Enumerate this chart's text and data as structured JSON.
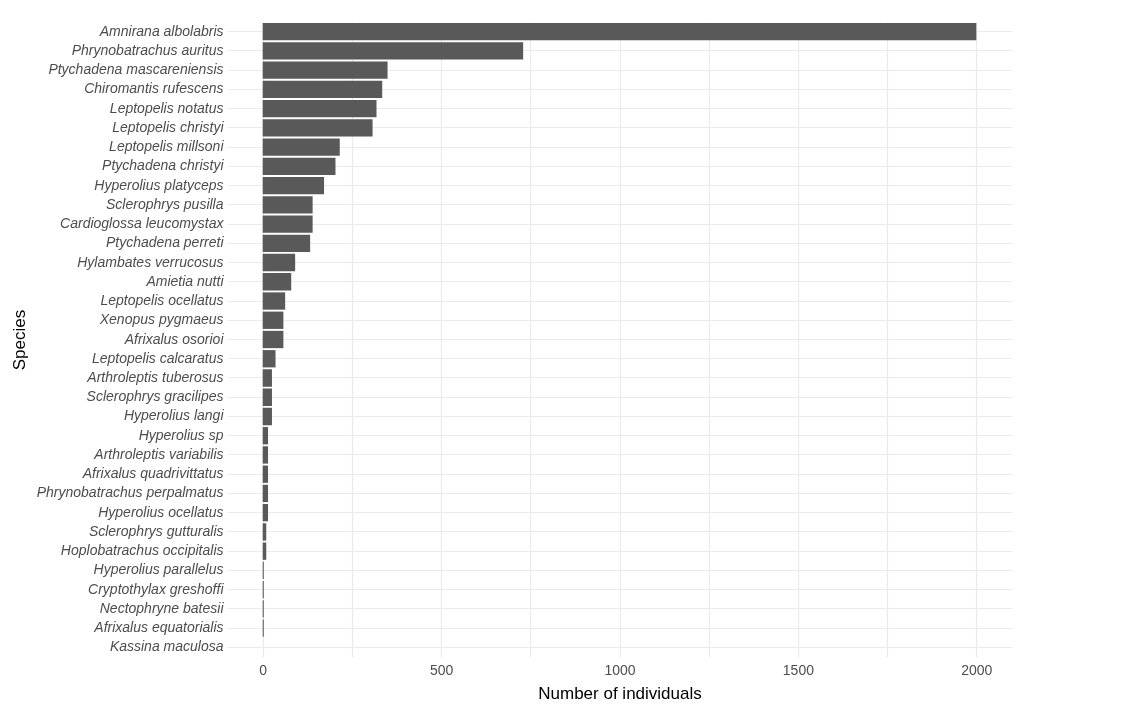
{
  "chart_data": {
    "type": "bar",
    "orientation": "horizontal",
    "xlabel": "Number of individuals",
    "ylabel": "Species",
    "categories": [
      "Amnirana albolabris",
      "Phrynobatrachus auritus",
      "Ptychadena mascareniensis",
      "Chiromantis rufescens",
      "Leptopelis notatus",
      "Leptopelis christyi",
      "Leptopelis millsoni",
      "Ptychadena christyi",
      "Hyperolius platyceps",
      "Sclerophrys pusilla",
      "Cardioglossa leucomystax",
      "Ptychadena perreti",
      "Hylambates verrucosus",
      "Amietia nutti",
      "Leptopelis ocellatus",
      "Xenopus pygmaeus",
      "Afrixalus osorioi",
      "Leptopelis calcaratus",
      "Arthroleptis tuberosus",
      "Sclerophrys gracilipes",
      "Hyperolius langi",
      "Hyperolius sp",
      "Arthroleptis variabilis",
      "Afrixalus quadrivittatus",
      "Phrynobatrachus perpalmatus",
      "Hyperolius ocellatus",
      "Sclerophrys gutturalis",
      "Hoplobatrachus occipitalis",
      "Hyperolius parallelus",
      "Cryptothylax greshoffi",
      "Nectophryne batesii",
      "Afrixalus equatorialis",
      "Kassina maculosa"
    ],
    "values": [
      2000,
      730,
      350,
      335,
      319,
      308,
      216,
      204,
      172,
      140,
      140,
      133,
      91,
      80,
      63,
      58,
      58,
      36,
      26,
      26,
      26,
      15,
      15,
      15,
      15,
      15,
      10,
      10,
      3,
      3,
      3,
      3,
      0
    ],
    "color": "#595959",
    "xlim": [
      -100,
      2100
    ],
    "xticks": [
      0,
      {
        "value": 250,
        "label": null
      },
      500,
      {
        "value": 750,
        "label": null
      },
      1000,
      {
        "value": 1250,
        "label": null
      },
      1500,
      {
        "value": 1750,
        "label": null
      },
      2000
    ],
    "grid": true
  }
}
